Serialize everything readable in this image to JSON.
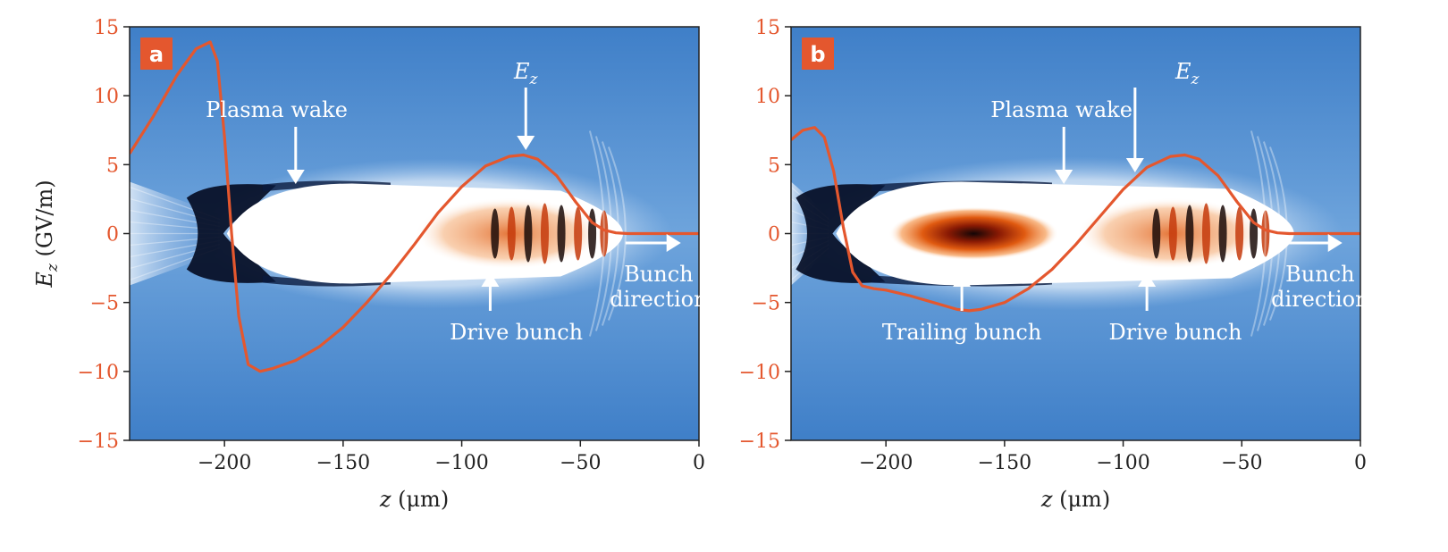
{
  "colors": {
    "curve": "#e4572e",
    "badge": "#e4572e",
    "y_axis_labels": "#e4572e",
    "background_blue": "#4a86cc",
    "annotation": "#ffffff",
    "tick_text": "#222222"
  },
  "chart_data": [
    {
      "type": "line",
      "panel_label": "a",
      "xlabel_var": "z",
      "xlabel_unit": " (μm)",
      "ylabel_var": "E",
      "ylabel_sub": "z",
      "ylabel_unit": " (GV/m)",
      "xlim": [
        -240,
        0
      ],
      "ylim": [
        -15,
        15
      ],
      "xticks": [
        -200,
        -150,
        -100,
        -50,
        0
      ],
      "yticks": [
        15,
        10,
        5,
        0,
        -5,
        -10,
        -15
      ],
      "xtick_labels": [
        "−200",
        "−150",
        "−100",
        "−50",
        "0"
      ],
      "ytick_labels": [
        "15",
        "10",
        "5",
        "0",
        "−5",
        "−10",
        "−15"
      ],
      "series": [
        {
          "x": [
            -240,
            -230,
            -220,
            -212,
            -206,
            -203,
            -200,
            -197,
            -194,
            -190,
            -185,
            -180,
            -170,
            -160,
            -150,
            -140,
            -130,
            -120,
            -110,
            -100,
            -90,
            -80,
            -74,
            -68,
            -60,
            -52,
            -45,
            -40,
            -35,
            -30,
            -20,
            -10,
            0
          ],
          "y": [
            5.8,
            8.5,
            11.5,
            13.4,
            13.9,
            12.5,
            7.0,
            0.0,
            -6.0,
            -9.5,
            -10.0,
            -9.8,
            -9.2,
            -8.2,
            -6.8,
            -5.0,
            -3.0,
            -0.8,
            1.5,
            3.4,
            4.9,
            5.6,
            5.7,
            5.4,
            4.2,
            2.3,
            0.8,
            0.25,
            0.05,
            0.0,
            0.0,
            0.0,
            0.0
          ]
        }
      ],
      "annotations": {
        "plasma_wake": "Plasma wake",
        "ez_var": "E",
        "ez_sub": "z",
        "drive_bunch": "Drive bunch",
        "bunch_line1": "Bunch",
        "bunch_line2": "direction"
      }
    },
    {
      "type": "line",
      "panel_label": "b",
      "xlabel_var": "z",
      "xlabel_unit": " (μm)",
      "xlim": [
        -240,
        0
      ],
      "ylim": [
        -15,
        15
      ],
      "xticks": [
        -200,
        -150,
        -100,
        -50,
        0
      ],
      "yticks": [
        15,
        10,
        5,
        0,
        -5,
        -10,
        -15
      ],
      "xtick_labels": [
        "−200",
        "−150",
        "−100",
        "−50",
        "0"
      ],
      "ytick_labels": [
        "15",
        "10",
        "5",
        "0",
        "−5",
        "−10",
        "−15"
      ],
      "series": [
        {
          "x": [
            -240,
            -235,
            -230,
            -226,
            -222,
            -218,
            -214,
            -210,
            -205,
            -200,
            -190,
            -180,
            -170,
            -165,
            -160,
            -150,
            -140,
            -130,
            -120,
            -110,
            -100,
            -90,
            -80,
            -74,
            -68,
            -60,
            -52,
            -45,
            -40,
            -35,
            -30,
            -20,
            -10,
            0
          ],
          "y": [
            6.8,
            7.5,
            7.7,
            7.0,
            4.5,
            0.5,
            -2.8,
            -3.8,
            -4.0,
            -4.1,
            -4.5,
            -5.0,
            -5.5,
            -5.6,
            -5.5,
            -5.0,
            -4.0,
            -2.6,
            -0.8,
            1.2,
            3.2,
            4.8,
            5.6,
            5.7,
            5.4,
            4.2,
            2.3,
            0.8,
            0.25,
            0.05,
            0.0,
            0.0,
            0.0,
            0.0
          ]
        }
      ],
      "annotations": {
        "plasma_wake": "Plasma wake",
        "ez_var": "E",
        "ez_sub": "z",
        "trailing_bunch": "Trailing bunch",
        "drive_bunch": "Drive bunch",
        "bunch_line1": "Bunch",
        "bunch_line2": "direction"
      }
    }
  ]
}
